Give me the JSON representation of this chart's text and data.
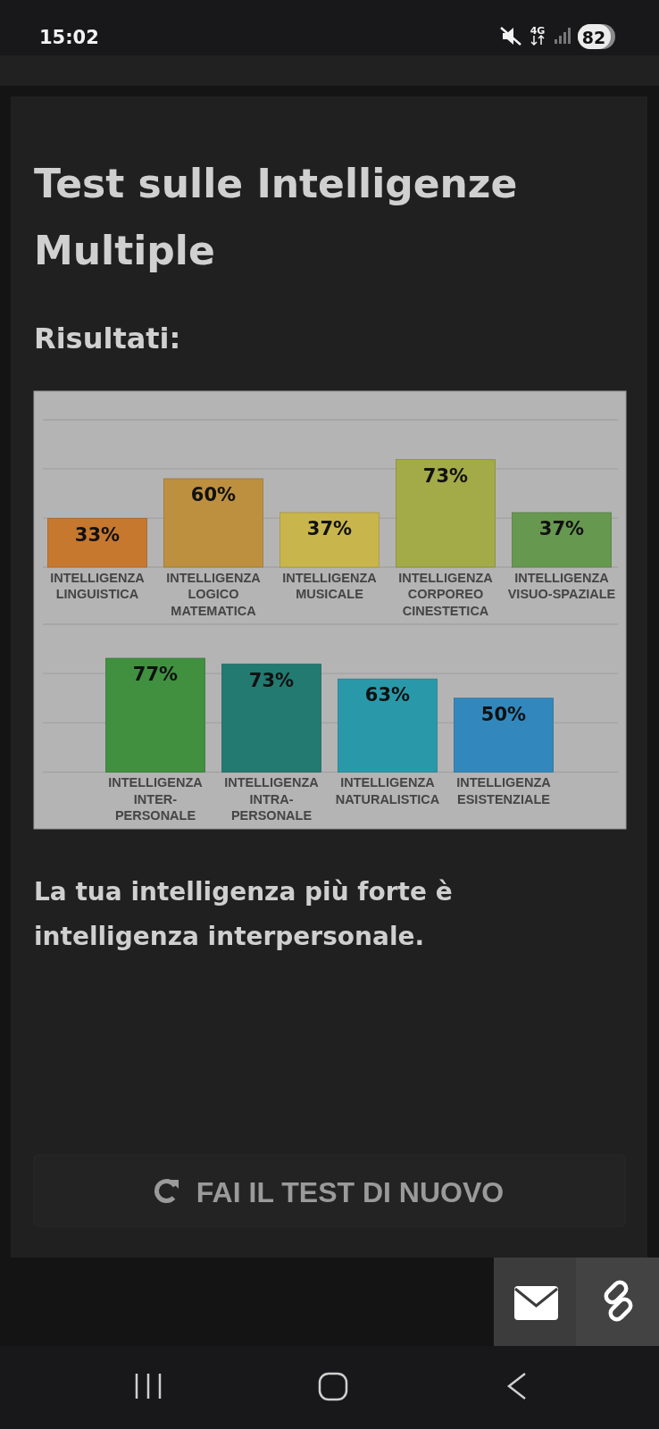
{
  "chart_data": [
    {
      "type": "bar",
      "title": "Test sulle Intelligenze Multiple",
      "subtitle": "Risultati:",
      "annotations": [
        "15:02",
        "4G",
        "82"
      ],
      "categories": [
        "INTELLIGENZA LINGUISTICA",
        "INTELLIGENZA LOGICO MATEMATICA",
        "INTELLIGENZA MUSICALE",
        "INTELLIGENZA CORPOREO CINESTETICA",
        "INTELLIGENZA VISUO-SPAZIALE"
      ],
      "values": [
        33,
        60,
        37,
        73,
        37
      ],
      "colors": [
        "#c7782f",
        "#bd9040",
        "#c8b64c",
        "#a3aa48",
        "#679850"
      ],
      "value_labels": [
        "33%",
        "60%",
        "37%",
        "73%",
        "37%"
      ],
      "ylim": [
        0,
        100
      ],
      "yticks": [
        {
          "value": 0,
          "label": null
        },
        {
          "value": 33.3,
          "label": null
        },
        {
          "value": 66.7,
          "label": null
        },
        {
          "value": 100,
          "label": null
        }
      ],
      "grid": "y",
      "tick_labels": "x"
    },
    {
      "type": "bar",
      "annotations": [
        "La tua intelligenza più forte è intelligenza interpersonale.",
        "FAI IL TEST DI NUOVO"
      ],
      "categories": [
        "INTELLIGENZA INTER-PERSONALE",
        "INTELLIGENZA INTRA-PERSONALE",
        "INTELLIGENZA NATURALISTICA",
        "INTELLIGENZA ESISTENZIALE"
      ],
      "values": [
        77,
        73,
        63,
        50
      ],
      "colors": [
        "#409040",
        "#237a70",
        "#2999aa",
        "#3288bc"
      ],
      "value_labels": [
        "77%",
        "73%",
        "63%",
        "50%"
      ],
      "ylim": [
        0,
        100
      ],
      "yticks": [
        {
          "value": 0,
          "label": null
        },
        {
          "value": 33.3,
          "label": null
        },
        {
          "value": 66.7,
          "label": null
        },
        {
          "value": 100,
          "label": null
        }
      ],
      "grid": "y",
      "tick_labels": "x"
    }
  ]
}
